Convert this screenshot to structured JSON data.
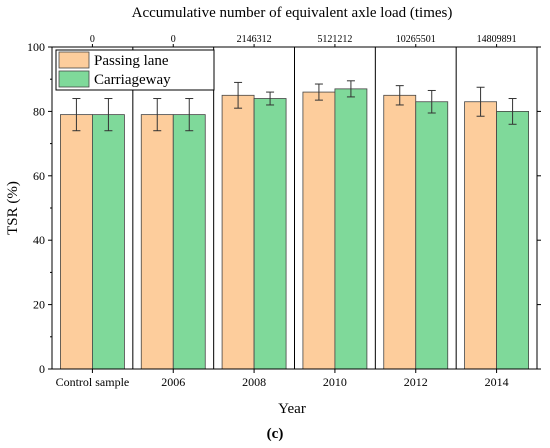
{
  "chart_data": {
    "type": "bar",
    "top_title": "Accumulative number of equivalent axle load (times)",
    "top_labels": [
      "0",
      "0",
      "2146312",
      "5121212",
      "10265501",
      "14809891"
    ],
    "categories": [
      "Control sample",
      "2006",
      "2008",
      "2010",
      "2012",
      "2014"
    ],
    "xlabel": "Year",
    "ylabel": "TSR (%)",
    "ylim": [
      0,
      100
    ],
    "yticks": [
      0,
      20,
      40,
      60,
      80,
      100
    ],
    "caption": "(c)",
    "legend_position": "top-left",
    "series": [
      {
        "name": "Passing lane",
        "color": "#fdcd9c",
        "values": [
          79,
          79,
          85,
          86,
          85,
          83
        ],
        "errors": [
          5,
          5,
          4,
          2.5,
          3,
          4.5
        ]
      },
      {
        "name": "Carriageway",
        "color": "#7fd99a",
        "values": [
          79,
          79,
          84,
          87,
          83,
          80
        ],
        "errors": [
          5,
          5,
          2,
          2.5,
          3.5,
          4
        ]
      }
    ]
  }
}
